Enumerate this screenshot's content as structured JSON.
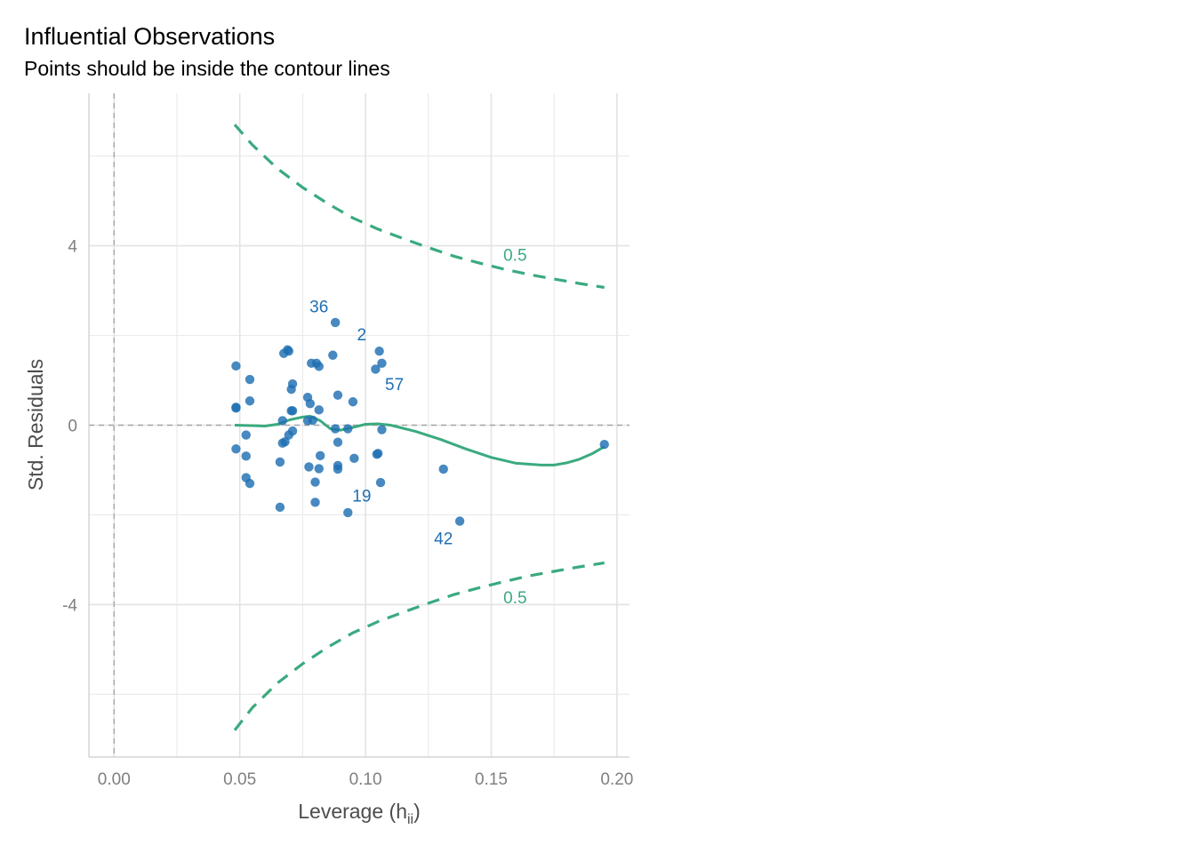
{
  "chart_data": {
    "type": "scatter",
    "title": "Influential Observations",
    "subtitle": "Points should be inside the contour lines",
    "xlabel": "Leverage (h",
    "xlabel_sub": "ii",
    "xlabel_close": ")",
    "ylabel": "Std. Residuals",
    "xlim": [
      -0.01,
      0.205
    ],
    "ylim": [
      -7.4,
      7.4
    ],
    "x_ticks": [
      0.0,
      0.05,
      0.1,
      0.15,
      0.2
    ],
    "x_tick_labels": [
      "0.00",
      "0.05",
      "0.10",
      "0.15",
      "0.20"
    ],
    "x_minor_ticks": [
      0.025,
      0.075,
      0.125,
      0.175
    ],
    "y_ticks": [
      -4,
      0,
      4
    ],
    "y_tick_labels": [
      "-4",
      "0",
      "4"
    ],
    "y_minor_ticks": [
      -6,
      -2,
      2,
      6
    ],
    "grid": true,
    "colors": {
      "points": "#1f6fb2",
      "contour": "#3aaa7f",
      "smooth": "#3aaa7f",
      "reference": "#a6a6a6"
    },
    "points": [
      {
        "x": 0.0485,
        "y": 1.32
      },
      {
        "x": 0.0485,
        "y": 0.4
      },
      {
        "x": 0.0485,
        "y": 0.38
      },
      {
        "x": 0.0485,
        "y": -0.53
      },
      {
        "x": 0.0525,
        "y": -0.22
      },
      {
        "x": 0.0525,
        "y": -0.69
      },
      {
        "x": 0.0525,
        "y": -1.17
      },
      {
        "x": 0.054,
        "y": 1.02
      },
      {
        "x": 0.054,
        "y": 0.54
      },
      {
        "x": 0.054,
        "y": -1.3
      },
      {
        "x": 0.066,
        "y": -0.82
      },
      {
        "x": 0.066,
        "y": -1.83
      },
      {
        "x": 0.067,
        "y": 0.1
      },
      {
        "x": 0.067,
        "y": -0.4
      },
      {
        "x": 0.0675,
        "y": 1.6
      },
      {
        "x": 0.068,
        "y": -0.37
      },
      {
        "x": 0.069,
        "y": 1.68
      },
      {
        "x": 0.0695,
        "y": -0.22
      },
      {
        "x": 0.0695,
        "y": 1.65
      },
      {
        "x": 0.0705,
        "y": 0.8
      },
      {
        "x": 0.0705,
        "y": 0.32
      },
      {
        "x": 0.071,
        "y": 0.92
      },
      {
        "x": 0.071,
        "y": -0.13
      },
      {
        "x": 0.071,
        "y": 0.32
      },
      {
        "x": 0.077,
        "y": 0.62
      },
      {
        "x": 0.077,
        "y": 0.1
      },
      {
        "x": 0.0775,
        "y": -0.93
      },
      {
        "x": 0.078,
        "y": 0.48
      },
      {
        "x": 0.0785,
        "y": 1.38
      },
      {
        "x": 0.079,
        "y": 0.11
      },
      {
        "x": 0.08,
        "y": -1.72
      },
      {
        "x": 0.08,
        "y": -1.27
      },
      {
        "x": 0.0805,
        "y": 1.38
      },
      {
        "x": 0.0815,
        "y": 1.31
      },
      {
        "x": 0.0815,
        "y": 0.34
      },
      {
        "x": 0.0815,
        "y": -0.97
      },
      {
        "x": 0.082,
        "y": -0.68
      },
      {
        "x": 0.087,
        "y": 1.56
      },
      {
        "x": 0.088,
        "y": 2.29,
        "label": "36"
      },
      {
        "x": 0.088,
        "y": -0.08
      },
      {
        "x": 0.089,
        "y": -0.38
      },
      {
        "x": 0.089,
        "y": -0.9
      },
      {
        "x": 0.089,
        "y": -0.98
      },
      {
        "x": 0.089,
        "y": 0.67
      },
      {
        "x": 0.093,
        "y": -1.95,
        "label": "19"
      },
      {
        "x": 0.093,
        "y": -0.08
      },
      {
        "x": 0.095,
        "y": 0.52
      },
      {
        "x": 0.0955,
        "y": -0.74
      },
      {
        "x": 0.104,
        "y": 1.25
      },
      {
        "x": 0.1045,
        "y": -0.65
      },
      {
        "x": 0.105,
        "y": -0.63
      },
      {
        "x": 0.1055,
        "y": 1.65,
        "label": "2"
      },
      {
        "x": 0.106,
        "y": -1.28
      },
      {
        "x": 0.1065,
        "y": -0.1
      },
      {
        "x": 0.1065,
        "y": 1.38,
        "label": "57"
      },
      {
        "x": 0.131,
        "y": -0.98
      },
      {
        "x": 0.1375,
        "y": -2.14,
        "label": "42"
      },
      {
        "x": 0.195,
        "y": -0.43
      }
    ],
    "point_labels": [
      {
        "text": "36",
        "x": 0.0815,
        "y": 2.65
      },
      {
        "text": "2",
        "x": 0.0985,
        "y": 2.03
      },
      {
        "text": "57",
        "x": 0.1115,
        "y": 0.92
      },
      {
        "text": "19",
        "x": 0.0985,
        "y": -1.57
      },
      {
        "text": "42",
        "x": 0.131,
        "y": -2.52
      }
    ],
    "contour_upper": [
      {
        "x": 0.048,
        "y": 6.7
      },
      {
        "x": 0.055,
        "y": 6.25
      },
      {
        "x": 0.065,
        "y": 5.72
      },
      {
        "x": 0.075,
        "y": 5.3
      },
      {
        "x": 0.085,
        "y": 4.94
      },
      {
        "x": 0.095,
        "y": 4.62
      },
      {
        "x": 0.105,
        "y": 4.37
      },
      {
        "x": 0.115,
        "y": 4.16
      },
      {
        "x": 0.125,
        "y": 3.96
      },
      {
        "x": 0.135,
        "y": 3.77
      },
      {
        "x": 0.145,
        "y": 3.62
      },
      {
        "x": 0.155,
        "y": 3.48
      },
      {
        "x": 0.165,
        "y": 3.36
      },
      {
        "x": 0.175,
        "y": 3.26
      },
      {
        "x": 0.185,
        "y": 3.16
      },
      {
        "x": 0.195,
        "y": 3.07
      }
    ],
    "contour_lower": [
      {
        "x": 0.048,
        "y": -6.8
      },
      {
        "x": 0.055,
        "y": -6.3
      },
      {
        "x": 0.065,
        "y": -5.75
      },
      {
        "x": 0.075,
        "y": -5.32
      },
      {
        "x": 0.085,
        "y": -4.95
      },
      {
        "x": 0.095,
        "y": -4.63
      },
      {
        "x": 0.105,
        "y": -4.38
      },
      {
        "x": 0.115,
        "y": -4.17
      },
      {
        "x": 0.125,
        "y": -3.97
      },
      {
        "x": 0.135,
        "y": -3.78
      },
      {
        "x": 0.145,
        "y": -3.63
      },
      {
        "x": 0.155,
        "y": -3.49
      },
      {
        "x": 0.165,
        "y": -3.36
      },
      {
        "x": 0.175,
        "y": -3.26
      },
      {
        "x": 0.185,
        "y": -3.16
      },
      {
        "x": 0.195,
        "y": -3.07
      }
    ],
    "contour_labels": [
      {
        "text": "0.5",
        "x": 0.1595,
        "y": 3.8
      },
      {
        "text": "0.5",
        "x": 0.1595,
        "y": -3.83
      }
    ],
    "smooth": [
      {
        "x": 0.048,
        "y": 0.0
      },
      {
        "x": 0.055,
        "y": -0.01
      },
      {
        "x": 0.06,
        "y": -0.02
      },
      {
        "x": 0.065,
        "y": 0.02
      },
      {
        "x": 0.07,
        "y": 0.12
      },
      {
        "x": 0.075,
        "y": 0.18
      },
      {
        "x": 0.078,
        "y": 0.2
      },
      {
        "x": 0.082,
        "y": 0.1
      },
      {
        "x": 0.086,
        "y": -0.08
      },
      {
        "x": 0.09,
        "y": -0.11
      },
      {
        "x": 0.095,
        "y": -0.05
      },
      {
        "x": 0.1,
        "y": 0.02
      },
      {
        "x": 0.105,
        "y": 0.03
      },
      {
        "x": 0.11,
        "y": 0.0
      },
      {
        "x": 0.12,
        "y": -0.14
      },
      {
        "x": 0.13,
        "y": -0.32
      },
      {
        "x": 0.14,
        "y": -0.53
      },
      {
        "x": 0.15,
        "y": -0.72
      },
      {
        "x": 0.16,
        "y": -0.85
      },
      {
        "x": 0.17,
        "y": -0.89
      },
      {
        "x": 0.175,
        "y": -0.89
      },
      {
        "x": 0.18,
        "y": -0.84
      },
      {
        "x": 0.185,
        "y": -0.76
      },
      {
        "x": 0.19,
        "y": -0.64
      },
      {
        "x": 0.195,
        "y": -0.48
      }
    ]
  }
}
